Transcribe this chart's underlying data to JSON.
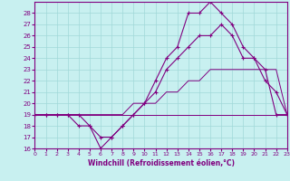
{
  "xlabel": "Windchill (Refroidissement éolien,°C)",
  "bg_color": "#c8f0f0",
  "grid_color": "#a0d8d8",
  "line_color": "#800080",
  "hours": [
    0,
    1,
    2,
    3,
    4,
    5,
    6,
    7,
    8,
    9,
    10,
    11,
    12,
    13,
    14,
    15,
    16,
    17,
    18,
    19,
    20,
    21,
    22,
    23
  ],
  "windchill": [
    19,
    19,
    19,
    19,
    18,
    18,
    17,
    17,
    18,
    19,
    20,
    22,
    24,
    25,
    28,
    28,
    29,
    28,
    27,
    25,
    24,
    23,
    19,
    19
  ],
  "temp": [
    19,
    19,
    19,
    19,
    19,
    18,
    16,
    17,
    18,
    19,
    20,
    21,
    23,
    24,
    25,
    26,
    26,
    27,
    26,
    24,
    24,
    22,
    21,
    19
  ],
  "temp_min": [
    19,
    19,
    19,
    19,
    19,
    19,
    19,
    19,
    19,
    19,
    19,
    19,
    19,
    19,
    19,
    19,
    19,
    19,
    19,
    19,
    19,
    19,
    19,
    19
  ],
  "temp_max": [
    19,
    19,
    19,
    19,
    19,
    19,
    19,
    19,
    19,
    20,
    20,
    20,
    21,
    21,
    22,
    22,
    23,
    23,
    23,
    23,
    23,
    23,
    23,
    19
  ],
  "ylim_min": 16,
  "ylim_max": 29,
  "xlim_min": 0,
  "xlim_max": 23,
  "yticks": [
    16,
    17,
    18,
    19,
    20,
    21,
    22,
    23,
    24,
    25,
    26,
    27,
    28
  ],
  "xticks": [
    0,
    1,
    2,
    3,
    4,
    5,
    6,
    7,
    8,
    9,
    10,
    11,
    12,
    13,
    14,
    15,
    16,
    17,
    18,
    19,
    20,
    21,
    22,
    23
  ],
  "figwidth": 3.2,
  "figheight": 2.0,
  "dpi": 100
}
